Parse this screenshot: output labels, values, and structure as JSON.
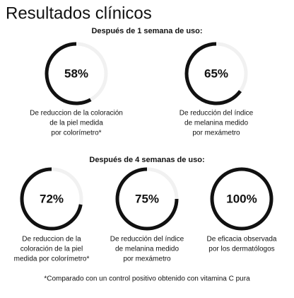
{
  "title": "Resultados clínicos",
  "sections": [
    {
      "heading": "Después de 1 semana de uso:",
      "items": [
        {
          "value": 58,
          "label": "58%",
          "caption": [
            "De reduccion de la coloración",
            "de la piel medida",
            "por colorímetro*"
          ]
        },
        {
          "value": 65,
          "label": "65%",
          "caption": [
            "De reducción del índice",
            "de melanina medido",
            "por mexámetro"
          ]
        }
      ]
    },
    {
      "heading": "Después de 4 semanas de uso:",
      "items": [
        {
          "value": 72,
          "label": "72%",
          "caption": [
            "De reduccion de la",
            "coloración de la piel",
            "medida por colorímetro*"
          ]
        },
        {
          "value": 75,
          "label": "75%",
          "caption": [
            "De reducción del índice",
            "de melanina medido",
            "por mexámetro"
          ]
        },
        {
          "value": 100,
          "label": "100%",
          "caption": [
            "De eficacia observada",
            "por los dermatólogos"
          ]
        }
      ]
    }
  ],
  "footnote": "*Comparado con un control positivo obtenido con vitamina C pura"
}
